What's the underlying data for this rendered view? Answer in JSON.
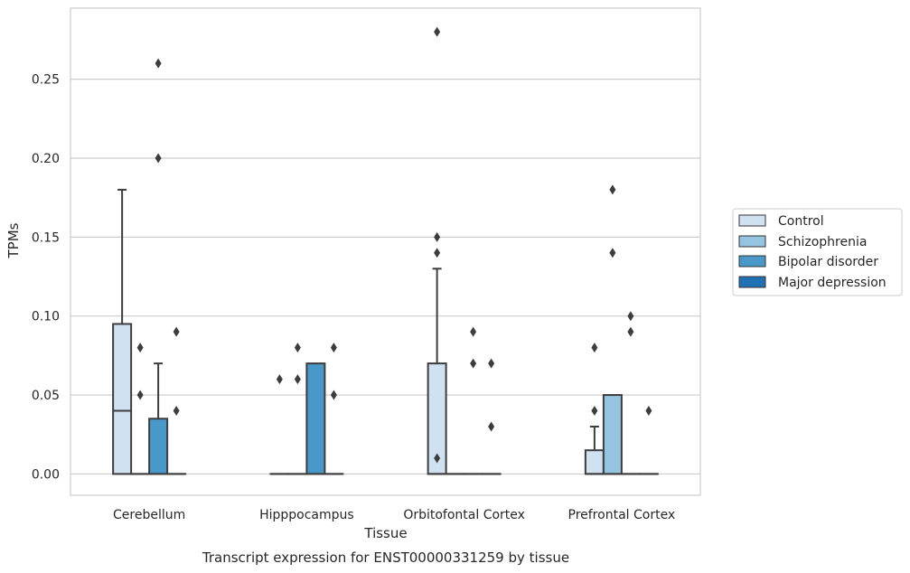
{
  "chart_data": {
    "type": "box",
    "title": "Transcript expression for ENST00000331259 by tissue",
    "xlabel": "Tissue",
    "ylabel": "TPMs",
    "categories": [
      "Cerebellum",
      "Hipppocampus",
      "Orbitofontal Cortex",
      "Prefrontal Cortex"
    ],
    "ylim": [
      -0.0135,
      0.295
    ],
    "yticks": [
      "0.00",
      "0.05",
      "0.10",
      "0.15",
      "0.20",
      "0.25"
    ],
    "ytick_values": [
      0,
      0.05,
      0.1,
      0.15,
      0.2,
      0.25
    ],
    "grid": true,
    "legend_position": "right",
    "series": [
      {
        "name": "Control",
        "color": "#d0e1f2",
        "boxes": [
          {
            "q1": 0,
            "median": 0.04,
            "q3": 0.095,
            "whisker_low": 0,
            "whisker_high": 0.18,
            "outliers": []
          },
          {
            "q1": 0,
            "median": 0,
            "q3": 0,
            "whisker_low": 0,
            "whisker_high": 0,
            "outliers": [
              0.06
            ]
          },
          {
            "q1": 0,
            "median": 0,
            "q3": 0.07,
            "whisker_low": 0,
            "whisker_high": 0.13,
            "outliers": [
              0.28,
              0.01,
              0.14,
              0.15
            ]
          },
          {
            "q1": 0,
            "median": 0,
            "q3": 0.015,
            "whisker_low": 0,
            "whisker_high": 0.03,
            "outliers": [
              0.04,
              0.08
            ]
          }
        ]
      },
      {
        "name": "Schizophrenia",
        "color": "#94c4df",
        "boxes": [
          {
            "q1": 0,
            "median": 0,
            "q3": 0,
            "whisker_low": 0,
            "whisker_high": 0,
            "outliers": [
              0.05,
              0.08
            ]
          },
          {
            "q1": 0,
            "median": 0,
            "q3": 0,
            "whisker_low": 0,
            "whisker_high": 0,
            "outliers": [
              0.06,
              0.08
            ]
          },
          {
            "q1": 0,
            "median": 0,
            "q3": 0,
            "whisker_low": 0,
            "whisker_high": 0,
            "outliers": []
          },
          {
            "q1": 0,
            "median": 0,
            "q3": 0.05,
            "whisker_low": 0,
            "whisker_high": 0.05,
            "outliers": [
              0.14,
              0.18
            ]
          }
        ]
      },
      {
        "name": "Bipolar disorder",
        "color": "#4a98c9",
        "boxes": [
          {
            "q1": 0,
            "median": 0,
            "q3": 0.035,
            "whisker_low": 0,
            "whisker_high": 0.07,
            "outliers": [
              0.2,
              0.26
            ]
          },
          {
            "q1": 0,
            "median": 0,
            "q3": 0.07,
            "whisker_low": 0,
            "whisker_high": 0.07,
            "outliers": []
          },
          {
            "q1": 0,
            "median": 0,
            "q3": 0,
            "whisker_low": 0,
            "whisker_high": 0,
            "outliers": [
              0.07,
              0.09
            ]
          },
          {
            "q1": 0,
            "median": 0,
            "q3": 0,
            "whisker_low": 0,
            "whisker_high": 0,
            "outliers": [
              0.09,
              0.1
            ]
          }
        ]
      },
      {
        "name": "Major depression",
        "color": "#2171b5",
        "boxes": [
          {
            "q1": 0,
            "median": 0,
            "q3": 0,
            "whisker_low": 0,
            "whisker_high": 0,
            "outliers": [
              0.04,
              0.09
            ]
          },
          {
            "q1": 0,
            "median": 0,
            "q3": 0,
            "whisker_low": 0,
            "whisker_high": 0,
            "outliers": [
              0.05,
              0.08
            ]
          },
          {
            "q1": 0,
            "median": 0,
            "q3": 0,
            "whisker_low": 0,
            "whisker_high": 0,
            "outliers": [
              0.03,
              0.07
            ]
          },
          {
            "q1": 0,
            "median": 0,
            "q3": 0,
            "whisker_low": 0,
            "whisker_high": 0,
            "outliers": [
              0.04
            ]
          }
        ]
      }
    ]
  }
}
